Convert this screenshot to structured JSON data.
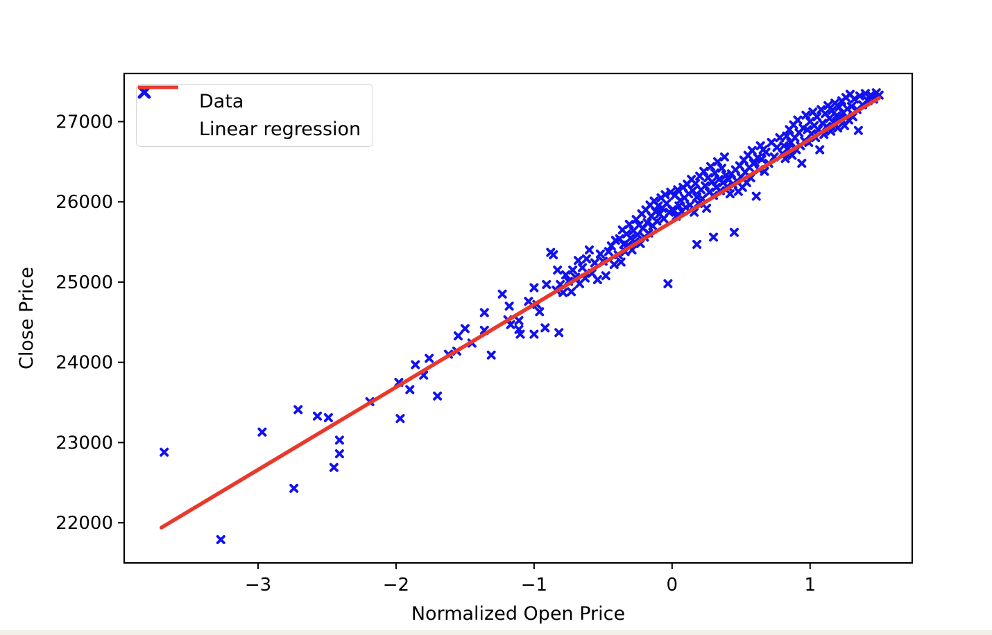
{
  "window": {
    "bottom_bar_color": "#f2efe9",
    "background": "#ffffff"
  },
  "chart_data": {
    "type": "scatter",
    "title": "",
    "xlabel": "Normalized Open Price",
    "ylabel": "Close Price",
    "xlim": [
      -3.97,
      1.74
    ],
    "ylim": [
      21500,
      27600
    ],
    "x_ticks": [
      -3,
      -2,
      -1,
      0,
      1
    ],
    "x_tick_labels": [
      "−3",
      "−2",
      "−1",
      "0",
      "1"
    ],
    "y_ticks": [
      22000,
      23000,
      24000,
      25000,
      26000,
      27000
    ],
    "y_tick_labels": [
      "22000",
      "23000",
      "24000",
      "25000",
      "26000",
      "27000"
    ],
    "grid": false,
    "legend_position": "upper left",
    "legend": {
      "data_label": "Data",
      "regression_label": "Linear regression"
    },
    "colors": {
      "marker": "#1212ee",
      "regression": "#e8392c",
      "axis": "#000000",
      "text": "#000000"
    },
    "regression_line": {
      "x": [
        -3.7,
        1.5
      ],
      "y": [
        21940,
        27295
      ]
    },
    "series": [
      {
        "name": "Data",
        "marker": "X",
        "points": [
          [
            -3.68,
            22880
          ],
          [
            -3.27,
            21790
          ],
          [
            -2.97,
            23130
          ],
          [
            -2.74,
            22430
          ],
          [
            -2.71,
            23410
          ],
          [
            -2.57,
            23330
          ],
          [
            -2.49,
            23310
          ],
          [
            -2.45,
            22690
          ],
          [
            -2.41,
            23030
          ],
          [
            -2.41,
            22860
          ],
          [
            -2.19,
            23510
          ],
          [
            -1.98,
            23750
          ],
          [
            -1.97,
            23300
          ],
          [
            -1.9,
            23660
          ],
          [
            -1.86,
            23970
          ],
          [
            -1.8,
            23840
          ],
          [
            -1.76,
            24050
          ],
          [
            -1.7,
            23580
          ],
          [
            -1.62,
            24100
          ],
          [
            -1.56,
            24140
          ],
          [
            -1.55,
            24330
          ],
          [
            -1.5,
            24420
          ],
          [
            -1.45,
            24240
          ],
          [
            -1.36,
            24620
          ],
          [
            -1.36,
            24400
          ],
          [
            -1.31,
            24090
          ],
          [
            -1.23,
            24850
          ],
          [
            -1.19,
            24530
          ],
          [
            -1.18,
            24700
          ],
          [
            -1.17,
            24470
          ],
          [
            -1.11,
            24520
          ],
          [
            -1.11,
            24410
          ],
          [
            -1.1,
            24350
          ],
          [
            -1.04,
            24760
          ],
          [
            -1.0,
            24930
          ],
          [
            -1.0,
            24350
          ],
          [
            -0.98,
            24720
          ],
          [
            -0.96,
            24630
          ],
          [
            -0.92,
            24430
          ],
          [
            -0.91,
            24970
          ],
          [
            -0.88,
            25370
          ],
          [
            -0.86,
            25340
          ],
          [
            -0.84,
            24900
          ],
          [
            -0.83,
            25150
          ],
          [
            -0.82,
            24370
          ],
          [
            -0.81,
            24970
          ],
          [
            -0.79,
            24870
          ],
          [
            -0.77,
            25090
          ],
          [
            -0.75,
            25010
          ],
          [
            -0.73,
            24880
          ],
          [
            -0.72,
            25150
          ],
          [
            -0.7,
            25060
          ],
          [
            -0.68,
            25270
          ],
          [
            -0.67,
            24980
          ],
          [
            -0.65,
            25180
          ],
          [
            -0.63,
            25050
          ],
          [
            -0.62,
            25290
          ],
          [
            -0.6,
            25400
          ],
          [
            -0.58,
            25110
          ],
          [
            -0.56,
            25240
          ],
          [
            -0.54,
            25030
          ],
          [
            -0.52,
            25350
          ],
          [
            -0.5,
            25260
          ],
          [
            -0.48,
            25080
          ],
          [
            -0.46,
            25380
          ],
          [
            -0.44,
            25450
          ],
          [
            -0.42,
            25220
          ],
          [
            -0.41,
            25520
          ],
          [
            -0.39,
            25340
          ],
          [
            -0.38,
            25540
          ],
          [
            -0.37,
            25250
          ],
          [
            -0.36,
            25650
          ],
          [
            -0.35,
            25470
          ],
          [
            -0.34,
            25380
          ],
          [
            -0.33,
            25600
          ],
          [
            -0.32,
            25460
          ],
          [
            -0.31,
            25720
          ],
          [
            -0.3,
            25550
          ],
          [
            -0.29,
            25400
          ],
          [
            -0.28,
            25640
          ],
          [
            -0.27,
            25500
          ],
          [
            -0.26,
            25780
          ],
          [
            -0.25,
            25590
          ],
          [
            -0.24,
            25710
          ],
          [
            -0.23,
            25480
          ],
          [
            -0.22,
            25850
          ],
          [
            -0.21,
            25670
          ],
          [
            -0.2,
            25560
          ],
          [
            -0.19,
            25900
          ],
          [
            -0.18,
            25740
          ],
          [
            -0.17,
            25610
          ],
          [
            -0.16,
            25960
          ],
          [
            -0.15,
            25820
          ],
          [
            -0.14,
            25700
          ],
          [
            -0.13,
            26010
          ],
          [
            -0.12,
            25880
          ],
          [
            -0.11,
            25760
          ],
          [
            -0.1,
            25950
          ],
          [
            -0.09,
            25850
          ],
          [
            -0.08,
            26050
          ],
          [
            -0.07,
            25920
          ],
          [
            -0.06,
            25790
          ],
          [
            -0.05,
            26090
          ],
          [
            -0.04,
            25980
          ],
          [
            -0.03,
            24980
          ],
          [
            -0.02,
            25870
          ],
          [
            -0.01,
            26120
          ],
          [
            0.0,
            25900
          ],
          [
            0.01,
            25900
          ],
          [
            0.02,
            26080
          ],
          [
            0.03,
            25820
          ],
          [
            0.04,
            26150
          ],
          [
            0.05,
            25950
          ],
          [
            0.06,
            26020
          ],
          [
            0.07,
            25880
          ],
          [
            0.08,
            26180
          ],
          [
            0.09,
            26050
          ],
          [
            0.1,
            25930
          ],
          [
            0.11,
            26220
          ],
          [
            0.12,
            26100
          ],
          [
            0.13,
            25960
          ],
          [
            0.14,
            26280
          ],
          [
            0.15,
            26140
          ],
          [
            0.16,
            25870
          ],
          [
            0.17,
            26230
          ],
          [
            0.18,
            25470
          ],
          [
            0.18,
            26060
          ],
          [
            0.19,
            25980
          ],
          [
            0.2,
            26320
          ],
          [
            0.21,
            26150
          ],
          [
            0.22,
            26040
          ],
          [
            0.23,
            26380
          ],
          [
            0.24,
            26200
          ],
          [
            0.25,
            25920
          ],
          [
            0.26,
            26300
          ],
          [
            0.27,
            26120
          ],
          [
            0.28,
            26440
          ],
          [
            0.29,
            26250
          ],
          [
            0.3,
            25560
          ],
          [
            0.3,
            26080
          ],
          [
            0.31,
            26360
          ],
          [
            0.32,
            26180
          ],
          [
            0.33,
            26500
          ],
          [
            0.34,
            26280
          ],
          [
            0.35,
            26140
          ],
          [
            0.36,
            26420
          ],
          [
            0.37,
            26240
          ],
          [
            0.38,
            26560
          ],
          [
            0.39,
            26330
          ],
          [
            0.4,
            26190
          ],
          [
            0.41,
            26280
          ],
          [
            0.42,
            26100
          ],
          [
            0.43,
            26350
          ],
          [
            0.44,
            26220
          ],
          [
            0.45,
            25620
          ],
          [
            0.46,
            26400
          ],
          [
            0.47,
            26260
          ],
          [
            0.48,
            26130
          ],
          [
            0.49,
            26450
          ],
          [
            0.5,
            26310
          ],
          [
            0.51,
            26180
          ],
          [
            0.52,
            26520
          ],
          [
            0.53,
            26370
          ],
          [
            0.54,
            26240
          ],
          [
            0.55,
            26580
          ],
          [
            0.56,
            26430
          ],
          [
            0.57,
            26300
          ],
          [
            0.58,
            26640
          ],
          [
            0.59,
            26480
          ],
          [
            0.6,
            26490
          ],
          [
            0.61,
            26070
          ],
          [
            0.62,
            26550
          ],
          [
            0.63,
            26400
          ],
          [
            0.64,
            26700
          ],
          [
            0.65,
            26530
          ],
          [
            0.66,
            26650
          ],
          [
            0.67,
            26380
          ],
          [
            0.68,
            26620
          ],
          [
            0.7,
            26480
          ],
          [
            0.72,
            26740
          ],
          [
            0.74,
            26560
          ],
          [
            0.76,
            26680
          ],
          [
            0.78,
            26800
          ],
          [
            0.8,
            26600
          ],
          [
            0.81,
            26700
          ],
          [
            0.82,
            26540
          ],
          [
            0.83,
            26820
          ],
          [
            0.84,
            26660
          ],
          [
            0.85,
            26900
          ],
          [
            0.86,
            26740
          ],
          [
            0.87,
            26580
          ],
          [
            0.88,
            26960
          ],
          [
            0.89,
            26800
          ],
          [
            0.9,
            26650
          ],
          [
            0.91,
            27020
          ],
          [
            0.92,
            26860
          ],
          [
            0.93,
            26700
          ],
          [
            0.94,
            26480
          ],
          [
            0.95,
            26920
          ],
          [
            0.96,
            26760
          ],
          [
            0.97,
            27080
          ],
          [
            0.98,
            26900
          ],
          [
            0.99,
            26740
          ],
          [
            1.0,
            27000
          ],
          [
            1.01,
            26850
          ],
          [
            1.02,
            27120
          ],
          [
            1.03,
            26950
          ],
          [
            1.04,
            26800
          ],
          [
            1.05,
            27060
          ],
          [
            1.06,
            26900
          ],
          [
            1.07,
            26650
          ],
          [
            1.08,
            27150
          ],
          [
            1.09,
            26980
          ],
          [
            1.1,
            26840
          ],
          [
            1.11,
            27100
          ],
          [
            1.12,
            26940
          ],
          [
            1.13,
            27200
          ],
          [
            1.14,
            27040
          ],
          [
            1.15,
            26880
          ],
          [
            1.16,
            27140
          ],
          [
            1.17,
            26990
          ],
          [
            1.18,
            27230
          ],
          [
            1.19,
            27070
          ],
          [
            1.2,
            26920
          ],
          [
            1.21,
            27180
          ],
          [
            1.22,
            27040
          ],
          [
            1.23,
            27260
          ],
          [
            1.24,
            27110
          ],
          [
            1.25,
            26950
          ],
          [
            1.26,
            27300
          ],
          [
            1.27,
            27160
          ],
          [
            1.28,
            27020
          ],
          [
            1.29,
            27340
          ],
          [
            1.3,
            27190
          ],
          [
            1.31,
            27060
          ],
          [
            1.32,
            27280
          ],
          [
            1.34,
            27150
          ],
          [
            1.35,
            26890
          ],
          [
            1.36,
            27320
          ],
          [
            1.38,
            27210
          ],
          [
            1.4,
            27350
          ],
          [
            1.42,
            27260
          ],
          [
            1.44,
            27330
          ],
          [
            1.46,
            27280
          ],
          [
            1.48,
            27360
          ],
          [
            1.5,
            27330
          ]
        ]
      }
    ]
  }
}
